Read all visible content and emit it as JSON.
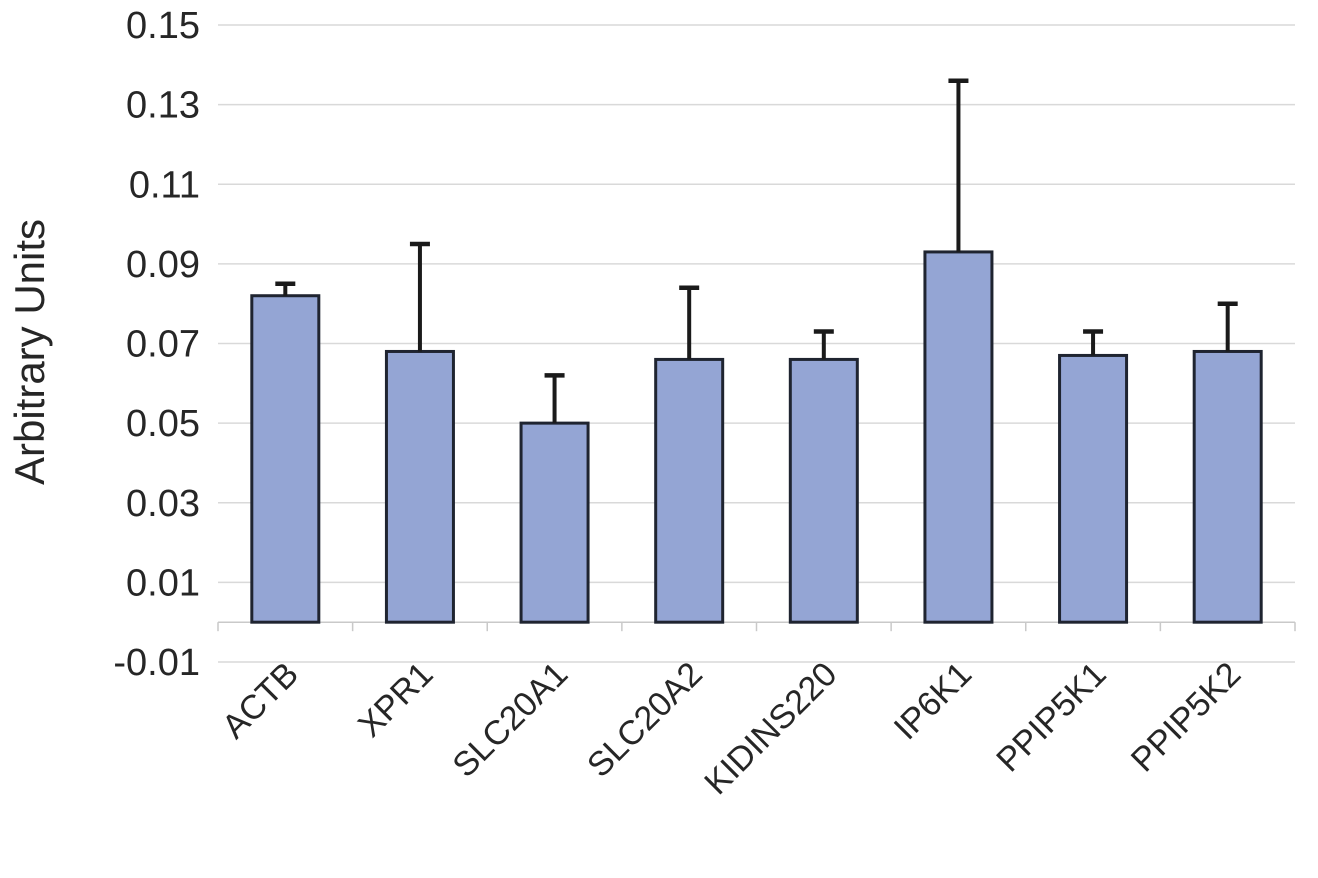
{
  "chart_data": {
    "type": "bar",
    "title": "",
    "xlabel": "",
    "ylabel": "Arbitrary Units",
    "categories": [
      "ACTB",
      "XPR1",
      "SLC20A1",
      "SLC20A2",
      "KIDINS220",
      "IP6K1",
      "PPIP5K1",
      "PPIP5K2"
    ],
    "values": [
      0.082,
      0.068,
      0.05,
      0.066,
      0.066,
      0.093,
      0.067,
      0.068
    ],
    "error_plus": [
      0.003,
      0.027,
      0.012,
      0.018,
      0.007,
      0.043,
      0.006,
      0.012
    ],
    "y_ticks": [
      0.15,
      0.13,
      0.11,
      0.09,
      0.07,
      0.05,
      0.03,
      0.01,
      -0.01
    ],
    "ylim": [
      -0.01,
      0.15
    ],
    "grid": true,
    "legend_position": "none",
    "bar_color": "#94A5D4",
    "bar_border_color": "#1F2430",
    "error_color": "#1A1A1A",
    "gridline_color": "#D9D9D9",
    "axis_line_color": "#C9C9C9",
    "text_color": "#262626"
  }
}
